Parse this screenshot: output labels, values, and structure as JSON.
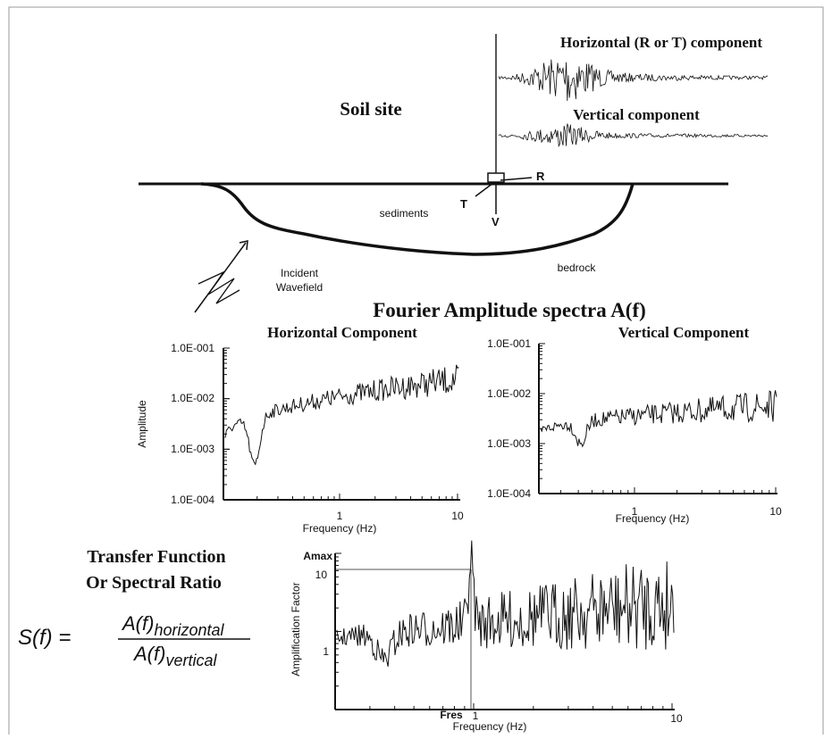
{
  "seismograms": {
    "horizontal_label": "Horizontal (R or T) component",
    "vertical_label": "Vertical component"
  },
  "site": {
    "title": "Soil site",
    "axis_r": "R",
    "axis_t": "T",
    "axis_v": "V",
    "sediments": "sediments",
    "bedrock": "bedrock",
    "incident": [
      "Incident",
      "Wavefield"
    ]
  },
  "spectra": {
    "title": "Fourier Amplitude spectra A(f)",
    "horizontal": {
      "title": "Horizontal Component",
      "y_label": "Amplitude",
      "x_label": "Frequency (Hz)",
      "yticks": [
        "1.0E-001",
        "1.0E-002",
        "1.0E-003",
        "1.0E-004"
      ],
      "xticks": [
        "1",
        "10"
      ]
    },
    "vertical": {
      "title": "Vertical Component",
      "x_label": "Frequency (Hz)",
      "yticks": [
        "1.0E-001",
        "1.0E-002",
        "1.0E-003",
        "1.0E-004"
      ],
      "xticks": [
        "1",
        "10"
      ]
    }
  },
  "transfer": {
    "title": [
      "Transfer Function",
      "Or Spectral Ratio"
    ],
    "formula": {
      "lhs": "S(f) =",
      "numerator": "A(f)",
      "numerator_sub": "horizontal",
      "denominator": "A(f)",
      "denominator_sub": "vertical"
    },
    "plot": {
      "y_label": "Amplification Factor",
      "x_label": "Frequency (Hz)",
      "yticks": [
        "Amax",
        "10",
        "1"
      ],
      "xticks": [
        "Fres",
        "1",
        "10"
      ]
    }
  }
}
